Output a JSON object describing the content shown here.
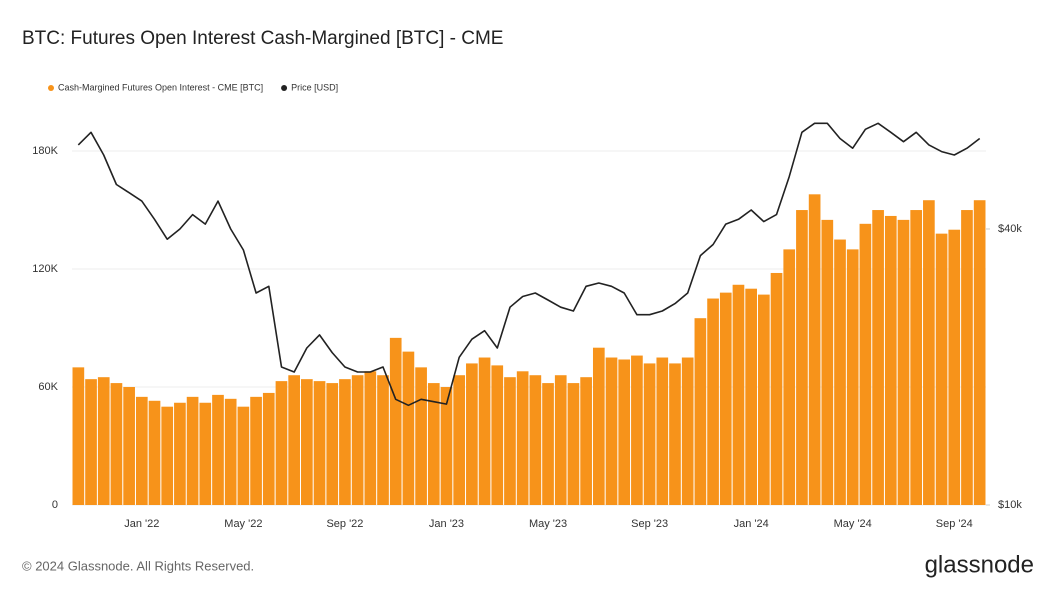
{
  "chart_data": {
    "type": "bar",
    "title": "BTC: Futures Open Interest Cash-Margined [BTC] - CME",
    "categories": [
      null,
      null,
      null,
      null,
      null,
      "Jan '22",
      null,
      null,
      null,
      null,
      null,
      null,
      null,
      "May '22",
      null,
      null,
      null,
      null,
      null,
      null,
      null,
      "Sep '22",
      null,
      null,
      null,
      null,
      null,
      null,
      null,
      "Jan '23",
      null,
      null,
      null,
      null,
      null,
      null,
      null,
      "May '23",
      null,
      null,
      null,
      null,
      null,
      null,
      null,
      "Sep '23",
      null,
      null,
      null,
      null,
      null,
      null,
      null,
      "Jan '24",
      null,
      null,
      null,
      null,
      null,
      null,
      null,
      "May '24",
      null,
      null,
      null,
      null,
      null,
      null,
      null,
      "Sep '24",
      null,
      null
    ],
    "series": [
      {
        "name": "Cash-Margined Futures Open Interest - CME [BTC]",
        "color": "#f7931a",
        "type": "bar",
        "values": [
          70000,
          64000,
          65000,
          62000,
          60000,
          55000,
          53000,
          50000,
          52000,
          55000,
          52000,
          56000,
          54000,
          50000,
          55000,
          57000,
          63000,
          66000,
          64000,
          63000,
          62000,
          64000,
          66000,
          68000,
          66000,
          85000,
          78000,
          70000,
          62000,
          60000,
          66000,
          72000,
          75000,
          71000,
          65000,
          68000,
          66000,
          62000,
          66000,
          62000,
          65000,
          80000,
          75000,
          74000,
          76000,
          72000,
          75000,
          72000,
          75000,
          95000,
          105000,
          108000,
          112000,
          110000,
          107000,
          118000,
          130000,
          150000,
          158000,
          145000,
          135000,
          130000,
          143000,
          150000,
          147000,
          145000,
          150000,
          155000,
          138000,
          140000,
          150000,
          155000
        ]
      },
      {
        "name": "Price [USD]",
        "color": "#222222",
        "type": "line",
        "axis": "y2",
        "values": [
          61000,
          65000,
          58000,
          50000,
          48000,
          46000,
          42000,
          38000,
          40000,
          43000,
          41000,
          46000,
          40000,
          36000,
          29000,
          30000,
          20000,
          19500,
          22000,
          23500,
          21500,
          20000,
          19500,
          19500,
          20000,
          17000,
          16500,
          17000,
          16800,
          16600,
          21000,
          23000,
          24000,
          22000,
          27000,
          28500,
          29000,
          28000,
          27000,
          26500,
          30000,
          30500,
          30000,
          29000,
          26000,
          26000,
          26500,
          27500,
          29000,
          35000,
          37000,
          41000,
          42000,
          44000,
          41500,
          43000,
          52000,
          65000,
          68000,
          68000,
          63000,
          60000,
          66000,
          68000,
          65000,
          62000,
          65000,
          61000,
          59000,
          58000,
          60000,
          63000
        ]
      }
    ],
    "ylim": [
      0,
      208000
    ],
    "yticks": [
      {
        "value": 0,
        "label": "0"
      },
      {
        "value": 60000,
        "label": "60K"
      },
      {
        "value": 120000,
        "label": "120K"
      },
      {
        "value": 180000,
        "label": "180K"
      }
    ],
    "y2lim": [
      10000,
      78000
    ],
    "y2log": true,
    "y2ticks": [
      {
        "value": 10000,
        "label": "$10k"
      },
      {
        "value": 40000,
        "label": "$40k"
      }
    ],
    "grid": true,
    "legend": "top-left"
  },
  "footer": "© 2024 Glassnode. All Rights Reserved.",
  "logo": "glassnode"
}
